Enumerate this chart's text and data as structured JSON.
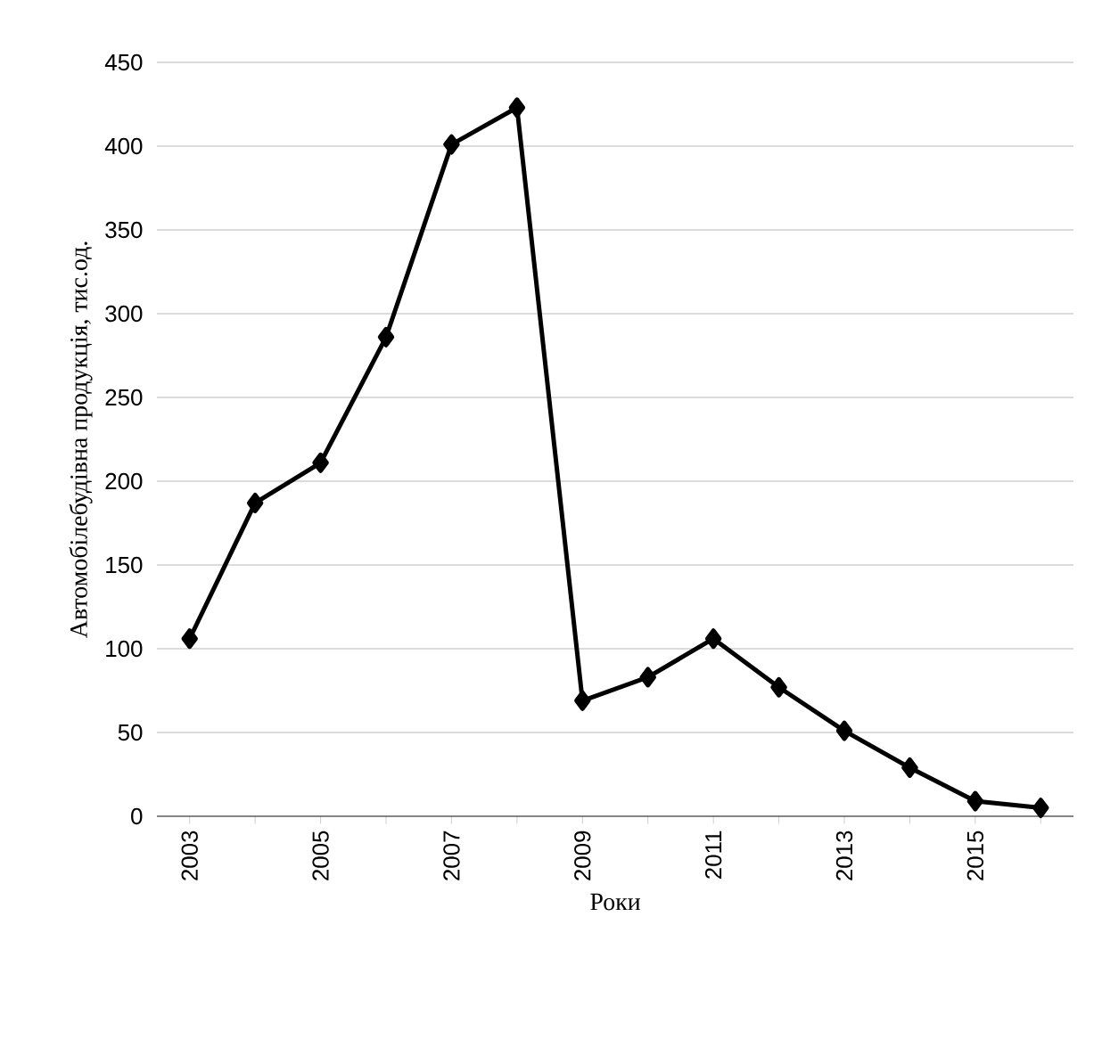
{
  "chart_data": {
    "type": "line",
    "xlabel": "Роки",
    "ylabel": "Автомобілебудівна продукція, тис.од.",
    "categories": [
      "2003",
      null,
      "2005",
      null,
      "2007",
      null,
      "2009",
      null,
      "2011",
      null,
      "2013",
      null,
      "2015",
      null
    ],
    "values": [
      106,
      187,
      211,
      286,
      401,
      423,
      69,
      83,
      106,
      77,
      51,
      29,
      9,
      5
    ],
    "color": "#000000",
    "marker": "diamond",
    "line_style": "solid",
    "ylim": [
      0,
      450
    ],
    "yticks": [
      0,
      50,
      100,
      150,
      200,
      250,
      300,
      350,
      400,
      450
    ],
    "grid": "y"
  }
}
